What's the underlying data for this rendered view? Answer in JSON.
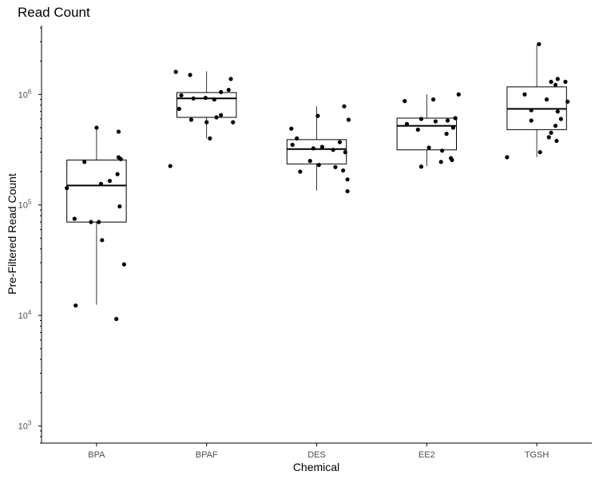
{
  "chart_data": {
    "type": "box",
    "title": "Read Count",
    "xlabel": "Chemical",
    "ylabel": "Pre-Filtered Read Count",
    "y_scale": "log10",
    "ylim": [
      700,
      4200000
    ],
    "y_ticks": [
      {
        "value": 1000,
        "base": "10",
        "exp": "3"
      },
      {
        "value": 10000,
        "base": "10",
        "exp": "4"
      },
      {
        "value": 100000,
        "base": "10",
        "exp": "5"
      },
      {
        "value": 1000000,
        "base": "10",
        "exp": "6"
      }
    ],
    "grid": false,
    "legend": "none",
    "categories": [
      "BPA",
      "BPAF",
      "DES",
      "EE2",
      "TGSH"
    ],
    "boxes": [
      {
        "category": "BPA",
        "whisker_low": 12500,
        "q1": 70000,
        "median": 150000,
        "q3": 255000,
        "whisker_high": 500000
      },
      {
        "category": "BPAF",
        "whisker_low": 400000,
        "q1": 620000,
        "median": 920000,
        "q3": 1040000,
        "whisker_high": 1620000
      },
      {
        "category": "DES",
        "whisker_low": 135000,
        "q1": 235000,
        "median": 320000,
        "q3": 390000,
        "whisker_high": 780000
      },
      {
        "category": "EE2",
        "whisker_low": 225000,
        "q1": 315000,
        "median": 520000,
        "q3": 610000,
        "whisker_high": 1000000
      },
      {
        "category": "TGSH",
        "whisker_low": 270000,
        "q1": 480000,
        "median": 740000,
        "q3": 1170000,
        "whisker_high": 2800000
      }
    ],
    "points": [
      {
        "category": "BPA",
        "jitter": 0.0,
        "value": 500000
      },
      {
        "category": "BPA",
        "jitter": 0.2,
        "value": 460000
      },
      {
        "category": "BPA",
        "jitter": -0.11,
        "value": 245000
      },
      {
        "category": "BPA",
        "jitter": 0.2,
        "value": 270000
      },
      {
        "category": "BPA",
        "jitter": 0.22,
        "value": 260000
      },
      {
        "category": "BPA",
        "jitter": 0.19,
        "value": 190000
      },
      {
        "category": "BPA",
        "jitter": 0.12,
        "value": 165000
      },
      {
        "category": "BPA",
        "jitter": 0.04,
        "value": 155000
      },
      {
        "category": "BPA",
        "jitter": -0.27,
        "value": 142000
      },
      {
        "category": "BPA",
        "jitter": 0.21,
        "value": 97000
      },
      {
        "category": "BPA",
        "jitter": -0.2,
        "value": 75000
      },
      {
        "category": "BPA",
        "jitter": -0.05,
        "value": 70000
      },
      {
        "category": "BPA",
        "jitter": 0.02,
        "value": 70000
      },
      {
        "category": "BPA",
        "jitter": 0.05,
        "value": 48000
      },
      {
        "category": "BPA",
        "jitter": 0.25,
        "value": 29000
      },
      {
        "category": "BPA",
        "jitter": -0.19,
        "value": 12300
      },
      {
        "category": "BPA",
        "jitter": 0.18,
        "value": 9300
      },
      {
        "category": "BPAF",
        "jitter": -0.28,
        "value": 1600000
      },
      {
        "category": "BPAF",
        "jitter": -0.15,
        "value": 1500000
      },
      {
        "category": "BPAF",
        "jitter": 0.22,
        "value": 1380000
      },
      {
        "category": "BPAF",
        "jitter": 0.2,
        "value": 1100000
      },
      {
        "category": "BPAF",
        "jitter": 0.13,
        "value": 1050000
      },
      {
        "category": "BPAF",
        "jitter": -0.23,
        "value": 980000
      },
      {
        "category": "BPAF",
        "jitter": -0.12,
        "value": 920000
      },
      {
        "category": "BPAF",
        "jitter": -0.01,
        "value": 930000
      },
      {
        "category": "BPAF",
        "jitter": 0.07,
        "value": 900000
      },
      {
        "category": "BPAF",
        "jitter": -0.25,
        "value": 740000
      },
      {
        "category": "BPAF",
        "jitter": 0.13,
        "value": 650000
      },
      {
        "category": "BPAF",
        "jitter": 0.09,
        "value": 620000
      },
      {
        "category": "BPAF",
        "jitter": -0.14,
        "value": 590000
      },
      {
        "category": "BPAF",
        "jitter": 0.24,
        "value": 560000
      },
      {
        "category": "BPAF",
        "jitter": 0.0,
        "value": 560000
      },
      {
        "category": "BPAF",
        "jitter": 0.03,
        "value": 400000
      },
      {
        "category": "BPAF",
        "jitter": -0.33,
        "value": 225000
      },
      {
        "category": "DES",
        "jitter": 0.25,
        "value": 780000
      },
      {
        "category": "DES",
        "jitter": 0.01,
        "value": 640000
      },
      {
        "category": "DES",
        "jitter": 0.29,
        "value": 590000
      },
      {
        "category": "DES",
        "jitter": -0.23,
        "value": 490000
      },
      {
        "category": "DES",
        "jitter": -0.18,
        "value": 400000
      },
      {
        "category": "DES",
        "jitter": 0.21,
        "value": 370000
      },
      {
        "category": "DES",
        "jitter": -0.22,
        "value": 350000
      },
      {
        "category": "DES",
        "jitter": 0.05,
        "value": 335000
      },
      {
        "category": "DES",
        "jitter": -0.03,
        "value": 325000
      },
      {
        "category": "DES",
        "jitter": 0.15,
        "value": 315000
      },
      {
        "category": "DES",
        "jitter": 0.26,
        "value": 300000
      },
      {
        "category": "DES",
        "jitter": -0.06,
        "value": 250000
      },
      {
        "category": "DES",
        "jitter": 0.02,
        "value": 230000
      },
      {
        "category": "DES",
        "jitter": 0.17,
        "value": 220000
      },
      {
        "category": "DES",
        "jitter": -0.15,
        "value": 200000
      },
      {
        "category": "DES",
        "jitter": 0.24,
        "value": 205000
      },
      {
        "category": "DES",
        "jitter": 0.28,
        "value": 170000
      },
      {
        "category": "DES",
        "jitter": 0.28,
        "value": 133000
      },
      {
        "category": "EE2",
        "jitter": 0.29,
        "value": 1000000
      },
      {
        "category": "EE2",
        "jitter": 0.06,
        "value": 900000
      },
      {
        "category": "EE2",
        "jitter": -0.2,
        "value": 870000
      },
      {
        "category": "EE2",
        "jitter": 0.26,
        "value": 610000
      },
      {
        "category": "EE2",
        "jitter": 0.19,
        "value": 580000
      },
      {
        "category": "EE2",
        "jitter": -0.05,
        "value": 600000
      },
      {
        "category": "EE2",
        "jitter": 0.08,
        "value": 570000
      },
      {
        "category": "EE2",
        "jitter": -0.18,
        "value": 540000
      },
      {
        "category": "EE2",
        "jitter": 0.24,
        "value": 500000
      },
      {
        "category": "EE2",
        "jitter": -0.08,
        "value": 480000
      },
      {
        "category": "EE2",
        "jitter": 0.18,
        "value": 440000
      },
      {
        "category": "EE2",
        "jitter": 0.02,
        "value": 330000
      },
      {
        "category": "EE2",
        "jitter": 0.14,
        "value": 310000
      },
      {
        "category": "EE2",
        "jitter": 0.22,
        "value": 265000
      },
      {
        "category": "EE2",
        "jitter": 0.23,
        "value": 255000
      },
      {
        "category": "EE2",
        "jitter": 0.13,
        "value": 245000
      },
      {
        "category": "EE2",
        "jitter": -0.05,
        "value": 222000
      },
      {
        "category": "TGSH",
        "jitter": 0.02,
        "value": 2850000
      },
      {
        "category": "TGSH",
        "jitter": 0.19,
        "value": 1380000
      },
      {
        "category": "TGSH",
        "jitter": 0.26,
        "value": 1300000
      },
      {
        "category": "TGSH",
        "jitter": 0.13,
        "value": 1300000
      },
      {
        "category": "TGSH",
        "jitter": 0.17,
        "value": 1220000
      },
      {
        "category": "TGSH",
        "jitter": -0.11,
        "value": 1000000
      },
      {
        "category": "TGSH",
        "jitter": 0.09,
        "value": 900000
      },
      {
        "category": "TGSH",
        "jitter": 0.28,
        "value": 860000
      },
      {
        "category": "TGSH",
        "jitter": -0.05,
        "value": 720000
      },
      {
        "category": "TGSH",
        "jitter": 0.19,
        "value": 700000
      },
      {
        "category": "TGSH",
        "jitter": 0.22,
        "value": 600000
      },
      {
        "category": "TGSH",
        "jitter": -0.05,
        "value": 580000
      },
      {
        "category": "TGSH",
        "jitter": 0.17,
        "value": 520000
      },
      {
        "category": "TGSH",
        "jitter": 0.13,
        "value": 450000
      },
      {
        "category": "TGSH",
        "jitter": 0.11,
        "value": 410000
      },
      {
        "category": "TGSH",
        "jitter": 0.18,
        "value": 380000
      },
      {
        "category": "TGSH",
        "jitter": 0.03,
        "value": 300000
      },
      {
        "category": "TGSH",
        "jitter": -0.27,
        "value": 270000
      }
    ]
  }
}
